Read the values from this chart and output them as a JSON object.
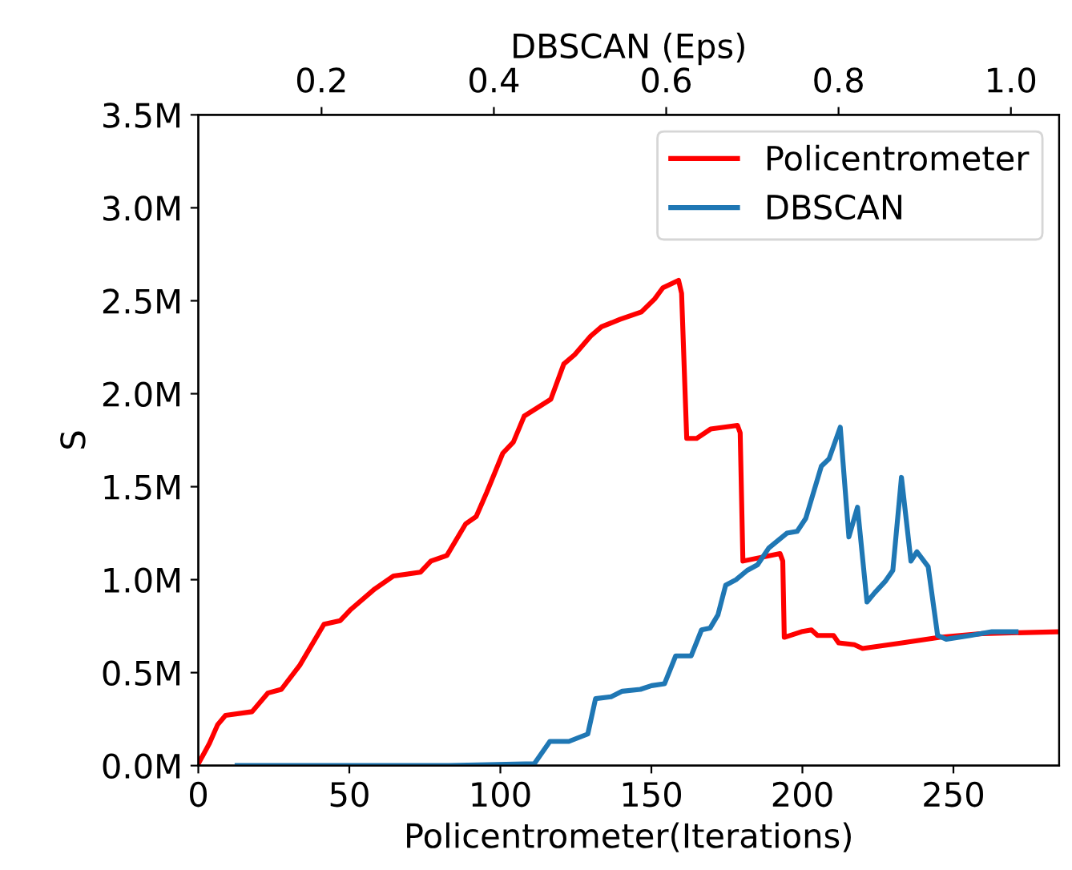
{
  "chart_data": {
    "type": "line",
    "xlabel": "Policentrometer(Iterations)",
    "ylabel": "S",
    "x2label": "DBSCAN (Eps)",
    "xlim": [
      0,
      285
    ],
    "xticks": [
      0,
      50,
      100,
      150,
      200,
      250
    ],
    "x2lim": [
      0.057,
      1.056
    ],
    "x2ticks": [
      0.2,
      0.4,
      0.6,
      0.8,
      {
        "value": 1,
        "label": "1.0"
      }
    ],
    "ylim": [
      0,
      3500000
    ],
    "yticks": [
      {
        "value": 0,
        "label": "0.0M"
      },
      {
        "value": 500000,
        "label": "0.5M"
      },
      {
        "value": 1000000,
        "label": "1.0M"
      },
      {
        "value": 1500000,
        "label": "1.5M"
      },
      {
        "value": 2000000,
        "label": "2.0M"
      },
      {
        "value": 2500000,
        "label": "2.5M"
      },
      {
        "value": 3000000,
        "label": "3.0M"
      },
      {
        "value": 3500000,
        "label": "3.5M"
      }
    ],
    "grid": false,
    "legend": "top right",
    "marker": "none",
    "line_style": "solid",
    "series": [
      {
        "name": "Policentrometer",
        "color": "#ff0000",
        "x": [
          0,
          3.7,
          6.4,
          9,
          17.8,
          23,
          27.5,
          33.6,
          41.6,
          47,
          50.5,
          58.4,
          64.6,
          73.5,
          77,
          82.3,
          88.5,
          92,
          95.5,
          100.8,
          104.3,
          107.9,
          116.7,
          121,
          124.6,
          129.9,
          133.5,
          139.6,
          146.7,
          151.1,
          153.8,
          159,
          160,
          161.7,
          165,
          169.6,
          178.5,
          179.4,
          180.3,
          192.6,
          193.5,
          194,
          199.7,
          203,
          205,
          210.3,
          212,
          217.2,
          219.9,
          233,
          245.5,
          259.6,
          285
        ],
        "values": [
          10000,
          120000,
          220000,
          270000,
          290000,
          390000,
          410000,
          540000,
          760000,
          780000,
          840000,
          950000,
          1020000,
          1040000,
          1100000,
          1130000,
          1300000,
          1340000,
          1470000,
          1680000,
          1740000,
          1880000,
          1970000,
          2160000,
          2210000,
          2310000,
          2360000,
          2400000,
          2440000,
          2510000,
          2570000,
          2610000,
          2540000,
          1760000,
          1760000,
          1810000,
          1830000,
          1790000,
          1100000,
          1140000,
          1100000,
          690000,
          720000,
          730000,
          700000,
          700000,
          660000,
          650000,
          630000,
          660000,
          690000,
          710000,
          720000
        ]
      },
      {
        "name": "DBSCAN",
        "color": "#1f77b4",
        "axis": "x2",
        "x": [
          0.102,
          0.348,
          0.447,
          0.465,
          0.487,
          0.509,
          0.518,
          0.536,
          0.549,
          0.57,
          0.583,
          0.598,
          0.611,
          0.629,
          0.641,
          0.651,
          0.66,
          0.669,
          0.681,
          0.694,
          0.706,
          0.719,
          0.74,
          0.752,
          0.762,
          0.78,
          0.789,
          0.802,
          0.812,
          0.822,
          0.833,
          0.842,
          0.854,
          0.863,
          0.873,
          0.884,
          0.891,
          0.904,
          0.915,
          0.925,
          0.953,
          0.978,
          1.006
        ],
        "values": [
          0,
          0,
          10000,
          130000,
          130000,
          170000,
          360000,
          370000,
          400000,
          410000,
          430000,
          440000,
          590000,
          590000,
          730000,
          740000,
          810000,
          970000,
          1000000,
          1050000,
          1080000,
          1170000,
          1250000,
          1260000,
          1330000,
          1610000,
          1650000,
          1820000,
          1230000,
          1390000,
          880000,
          930000,
          990000,
          1050000,
          1550000,
          1100000,
          1150000,
          1070000,
          700000,
          680000,
          700000,
          720000,
          720000
        ]
      }
    ]
  }
}
